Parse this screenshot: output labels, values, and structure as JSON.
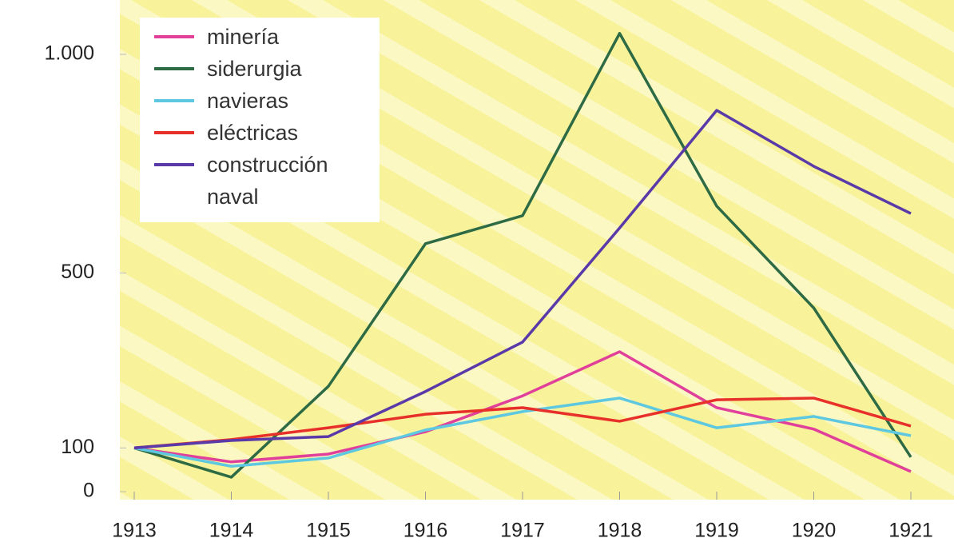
{
  "chart_data": {
    "type": "line",
    "categories": [
      "1913",
      "1914",
      "1915",
      "1916",
      "1917",
      "1918",
      "1919",
      "1920",
      "1921"
    ],
    "series": [
      {
        "name": "minería",
        "color": "#e0409a",
        "values": [
          100,
          68,
          86,
          137,
          219,
          320,
          192,
          143,
          46
        ]
      },
      {
        "name": "siderurgia",
        "color": "#2e6b45",
        "values": [
          100,
          33,
          241,
          567,
          631,
          1048,
          653,
          420,
          79
        ]
      },
      {
        "name": "navieras",
        "color": "#5ec8e0",
        "values": [
          100,
          58,
          77,
          141,
          183,
          214,
          146,
          172,
          128
        ]
      },
      {
        "name": "eléctricas",
        "color": "#e8302a",
        "values": [
          100,
          119,
          146,
          177,
          192,
          161,
          210,
          214,
          150
        ]
      },
      {
        "name": "construcción naval",
        "color": "#5a3aa8",
        "values": [
          100,
          117,
          126,
          229,
          342,
          603,
          872,
          744,
          636
        ]
      }
    ],
    "ylim": [
      0,
      1100
    ],
    "yticks": [
      0,
      100,
      500,
      {
        "value": 1000,
        "label": "1.000"
      }
    ],
    "legend": "upper left"
  }
}
